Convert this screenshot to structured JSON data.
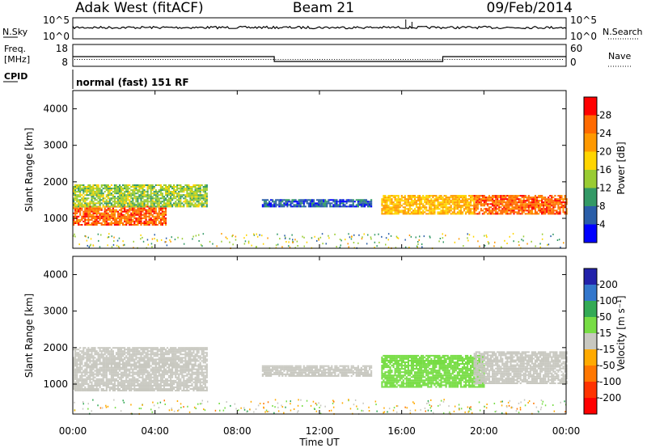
{
  "header": {
    "radar": "Adak West (fitACF)",
    "beam": "Beam 21",
    "date": "09/Feb/2014"
  },
  "nsky_panel": {
    "left_label": "N.Sky",
    "right_label": "N.Search",
    "left_ticks": [
      "10^5",
      "10^0"
    ],
    "right_ticks": [
      "10^5",
      "10^0"
    ]
  },
  "freq_panel": {
    "left_label_1": "Freq.",
    "left_label_2": "[MHz]",
    "right_label": "Nave",
    "left_ticks": [
      "18",
      "8"
    ],
    "right_ticks": [
      "60",
      "0"
    ],
    "cpid_label": "CPID",
    "cpid_text": "normal (fast) 151 RF"
  },
  "power_panel": {
    "ylabel": "Slant Range [km]",
    "yticks": [
      "4000",
      "3000",
      "2000",
      "1000"
    ],
    "colorbar_label": "Power [dB]",
    "colorbar_ticks": [
      "28",
      "24",
      "20",
      "16",
      "12",
      "8",
      "4"
    ],
    "colorbar_colors": [
      "#ff0000",
      "#ff6a00",
      "#ff9900",
      "#ffd500",
      "#99cc33",
      "#339966",
      "#2a5ea8",
      "#0000ff"
    ]
  },
  "velocity_panel": {
    "ylabel": "Slant Range [km]",
    "yticks": [
      "4000",
      "3000",
      "2000",
      "1000"
    ],
    "colorbar_label": "Velocity [m s⁻¹]",
    "colorbar_ticks": [
      "200",
      "100",
      "50",
      "15",
      "-15",
      "-50",
      "-100",
      "-200"
    ],
    "colorbar_colors": [
      "#2222aa",
      "#3377cc",
      "#33aa55",
      "#77dd44",
      "#c8c8c0",
      "#ffaa00",
      "#ff7700",
      "#ff3300",
      "#ff0000"
    ]
  },
  "xaxis": {
    "label": "Time UT",
    "ticks": [
      "00:00",
      "04:00",
      "08:00",
      "12:00",
      "16:00",
      "20:00",
      "00:00"
    ]
  },
  "chart_data": {
    "type": "heatmap",
    "title": "Adak West (fitACF)   Beam 21   09/Feb/2014",
    "x_range_hours": [
      0,
      24
    ],
    "y_range_km": [
      180,
      4500
    ],
    "freq_mhz": {
      "segments": [
        {
          "start": 0,
          "end": 9.8,
          "value": 13
        },
        {
          "start": 9.8,
          "end": 18,
          "value": 10.5
        },
        {
          "start": 18,
          "end": 24,
          "value": 13
        }
      ]
    },
    "power_regions": [
      {
        "start": 0,
        "end": 4.5,
        "rmin": 800,
        "rmax": 1300,
        "level": 26
      },
      {
        "start": 0,
        "end": 6.5,
        "rmin": 1300,
        "rmax": 1900,
        "level": 14
      },
      {
        "start": 9.2,
        "end": 14.5,
        "rmin": 1300,
        "rmax": 1500,
        "level": 6
      },
      {
        "start": 15,
        "end": 19.5,
        "rmin": 1100,
        "rmax": 1600,
        "level": 20
      },
      {
        "start": 19.5,
        "end": 24,
        "rmin": 1100,
        "rmax": 1600,
        "level": 26
      }
    ],
    "velocity_regions": [
      {
        "start": 0,
        "end": 6.5,
        "rmin": 800,
        "rmax": 2000,
        "v": 0
      },
      {
        "start": 9.2,
        "end": 14.5,
        "rmin": 1200,
        "rmax": 1500,
        "v": 0
      },
      {
        "start": 15,
        "end": 20,
        "rmin": 900,
        "rmax": 1800,
        "v": 40
      },
      {
        "start": 19.5,
        "end": 24,
        "rmin": 1000,
        "rmax": 1900,
        "v": 0
      }
    ]
  }
}
